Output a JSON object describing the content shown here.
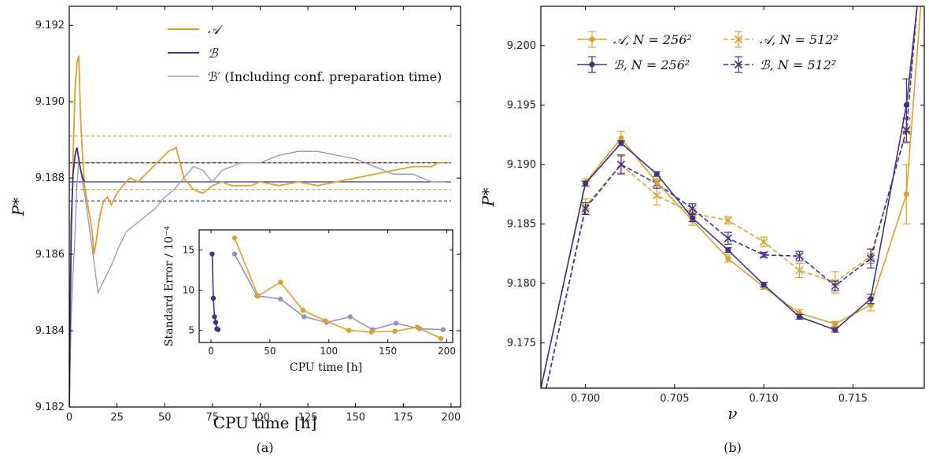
{
  "colors": {
    "A": "#dca22a",
    "B": "#3d3486",
    "Bprime": "#9793bd"
  },
  "chart_data": [
    {
      "type": "line",
      "caption": "(a)",
      "xlabel": "CPU time [h]",
      "ylabel": "P*",
      "xlim": [
        0,
        205
      ],
      "ylim": [
        9.182,
        9.1925
      ],
      "xticks": [
        "0",
        "25",
        "50",
        "75",
        "100",
        "125",
        "150",
        "175",
        "200"
      ],
      "yticks": [
        "9.182",
        "9.184",
        "9.186",
        "9.188",
        "9.190",
        "9.192"
      ],
      "legend": {
        "placement": "top-center",
        "entries": [
          "𝒜",
          "ℬ",
          "ℬ′ (Including conf. preparation time)"
        ]
      },
      "reference_lines": [
        {
          "series": "A",
          "style": "solid",
          "y": 9.1884
        },
        {
          "series": "A",
          "style": "dashed",
          "y": 9.1891
        },
        {
          "series": "A",
          "style": "dashed",
          "y": 9.1877
        },
        {
          "series": "B",
          "style": "solid",
          "y": 9.1879
        },
        {
          "series": "B",
          "style": "dashed",
          "y": 9.1884
        },
        {
          "series": "B",
          "style": "dashed",
          "y": 9.1874
        }
      ],
      "series": [
        {
          "name": "𝒜",
          "key": "A",
          "x": [
            0,
            1,
            2,
            3,
            4,
            5,
            6,
            7,
            8,
            10,
            12,
            13,
            14,
            16,
            18,
            20,
            22,
            25,
            28,
            32,
            36,
            40,
            44,
            48,
            52,
            56,
            60,
            65,
            70,
            75,
            80,
            85,
            90,
            95,
            100,
            110,
            120,
            130,
            140,
            150,
            160,
            170,
            180,
            185,
            190,
            193,
            197
          ],
          "y": [
            9.182,
            9.186,
            9.1885,
            9.1903,
            9.191,
            9.1912,
            9.1895,
            9.1885,
            9.1878,
            9.1872,
            9.1866,
            9.186,
            9.1863,
            9.187,
            9.1874,
            9.1875,
            9.1873,
            9.1876,
            9.1878,
            9.188,
            9.1879,
            9.1881,
            9.1883,
            9.1885,
            9.1887,
            9.1888,
            9.188,
            9.1877,
            9.1876,
            9.1878,
            9.1879,
            9.1878,
            9.1878,
            9.1878,
            9.1879,
            9.1878,
            9.1879,
            9.1878,
            9.1879,
            9.188,
            9.1881,
            9.1882,
            9.1883,
            9.1883,
            9.1883,
            9.1884,
            9.1884
          ]
        },
        {
          "name": "ℬ",
          "key": "B",
          "x": [
            0,
            1,
            2,
            3,
            4,
            5,
            6,
            7,
            8
          ],
          "y": [
            9.182,
            9.1868,
            9.1881,
            9.1886,
            9.1888,
            9.1885,
            9.1882,
            9.188,
            9.1879
          ]
        },
        {
          "name": "ℬ′ (Including conf. preparation time)",
          "key": "Bprime",
          "x": [
            0,
            1,
            2,
            3,
            4,
            5,
            6,
            8,
            10,
            13,
            15,
            18,
            22,
            26,
            30,
            35,
            40,
            45,
            50,
            55,
            60,
            65,
            70,
            75,
            80,
            90,
            100,
            110,
            120,
            130,
            140,
            150,
            160,
            170,
            180,
            190,
            197
          ],
          "y": [
            9.182,
            9.1843,
            9.1855,
            9.1865,
            9.1878,
            9.1885,
            9.1882,
            9.1876,
            9.1869,
            9.1858,
            9.185,
            9.1853,
            9.1857,
            9.1862,
            9.1866,
            9.1868,
            9.187,
            9.1872,
            9.1875,
            9.1877,
            9.188,
            9.1883,
            9.1882,
            9.1879,
            9.1882,
            9.1884,
            9.1884,
            9.1886,
            9.1887,
            9.1887,
            9.1886,
            9.1885,
            9.1883,
            9.1881,
            9.1881,
            9.1879,
            9.1879
          ]
        }
      ]
    },
    {
      "type": "line",
      "role": "inset",
      "xlabel": "CPU time [h]",
      "ylabel": "Standard Error / 10⁻⁴",
      "xlim": [
        -10,
        205
      ],
      "ylim": [
        3.5,
        17.5
      ],
      "xticks": [
        "0",
        "50",
        "100",
        "150",
        "200"
      ],
      "yticks": [
        "5",
        "10",
        "15"
      ],
      "series": [
        {
          "name": "𝒜",
          "key": "A",
          "x": [
            20,
            40,
            59,
            78,
            97,
            117,
            136,
            156,
            175,
            195
          ],
          "y": [
            16.5,
            9.3,
            11.0,
            7.5,
            6.2,
            5.0,
            4.8,
            4.9,
            5.4,
            4.0
          ]
        },
        {
          "name": "ℬ",
          "key": "B",
          "x": [
            1,
            2,
            3,
            4,
            5,
            6
          ],
          "y": [
            14.5,
            9.0,
            6.7,
            6.0,
            5.2,
            5.1
          ]
        },
        {
          "name": "ℬ′",
          "key": "Bprime",
          "x": [
            20,
            39,
            59,
            79,
            98,
            118,
            137,
            157,
            177,
            197
          ],
          "y": [
            14.5,
            9.3,
            8.9,
            6.7,
            6.0,
            6.7,
            5.1,
            5.9,
            5.2,
            5.1
          ]
        }
      ]
    },
    {
      "type": "line",
      "caption": "(b)",
      "xlabel": "ν",
      "ylabel": "P*",
      "xlim": [
        0.6975,
        0.719
      ],
      "ylim": [
        9.1712,
        9.2033
      ],
      "xticks": [
        "0.700",
        "0.705",
        "0.710",
        "0.715"
      ],
      "yticks": [
        "9.175",
        "9.180",
        "9.185",
        "9.190",
        "9.195",
        "9.200"
      ],
      "legend": {
        "placement": "top",
        "entries": [
          "𝒜, N = 256²",
          "ℬ, N = 256²",
          "𝒜, N = 512²",
          "ℬ, N = 512²"
        ]
      },
      "series": [
        {
          "name": "𝒜, N = 256²",
          "key": "A",
          "style": "solid-circle",
          "x": [
            0.6975,
            0.7,
            0.702,
            0.704,
            0.706,
            0.708,
            0.71,
            0.712,
            0.714,
            0.716,
            0.718,
            0.7188
          ],
          "y": [
            9.1712,
            9.1885,
            9.1922,
            9.1885,
            9.1853,
            9.1821,
            9.1797,
            9.1775,
            9.1766,
            9.1782,
            9.1875,
            9.2033
          ],
          "err": [
            null,
            0.0003,
            0.0006,
            0.0003,
            0.0004,
            0.0003,
            0.0002,
            0.0003,
            0.0002,
            0.0005,
            0.0025,
            null
          ]
        },
        {
          "name": "ℬ, N = 256²",
          "key": "B",
          "style": "solid-circle",
          "x": [
            0.6975,
            0.7,
            0.702,
            0.704,
            0.706,
            0.708,
            0.71,
            0.712,
            0.714,
            0.716,
            0.718,
            0.7186
          ],
          "y": [
            9.1712,
            9.1884,
            9.1918,
            9.1892,
            9.1855,
            9.1828,
            9.1799,
            9.1772,
            9.1761,
            9.1787,
            9.195,
            9.2033
          ],
          "err": [
            null,
            0.0002,
            0.0002,
            0.0002,
            0.0003,
            0.0002,
            0.0002,
            0.0002,
            0.0002,
            0.0004,
            0.0022,
            null
          ]
        },
        {
          "name": "𝒜, N = 512²",
          "key": "A",
          "style": "dashed-x",
          "x": [
            0.6978,
            0.7,
            0.702,
            0.704,
            0.706,
            0.708,
            0.71,
            0.712,
            0.714,
            0.716,
            0.718,
            0.7186
          ],
          "y": [
            9.1712,
            9.1865,
            9.19,
            9.1874,
            9.1859,
            9.1853,
            9.1835,
            9.1811,
            9.1801,
            9.1823,
            9.1928,
            9.2033
          ],
          "err": [
            null,
            0.0006,
            0.0007,
            0.0008,
            0.0004,
            0.0003,
            0.0004,
            0.0006,
            0.0009,
            0.0006,
            0.001,
            null
          ]
        },
        {
          "name": "ℬ, N = 512²",
          "key": "B",
          "style": "dashed-x",
          "x": [
            0.6978,
            0.7,
            0.702,
            0.704,
            0.706,
            0.708,
            0.71,
            0.712,
            0.714,
            0.716,
            0.718,
            0.7186
          ],
          "y": [
            9.1712,
            9.1863,
            9.19,
            9.1884,
            9.1863,
            9.1838,
            9.1824,
            9.1823,
            9.1798,
            9.1821,
            9.1929,
            9.2033
          ],
          "err": [
            null,
            0.0005,
            0.0008,
            0.0004,
            0.0004,
            0.0005,
            0.0002,
            0.0004,
            0.0004,
            0.0008,
            0.001,
            null
          ]
        }
      ]
    }
  ]
}
